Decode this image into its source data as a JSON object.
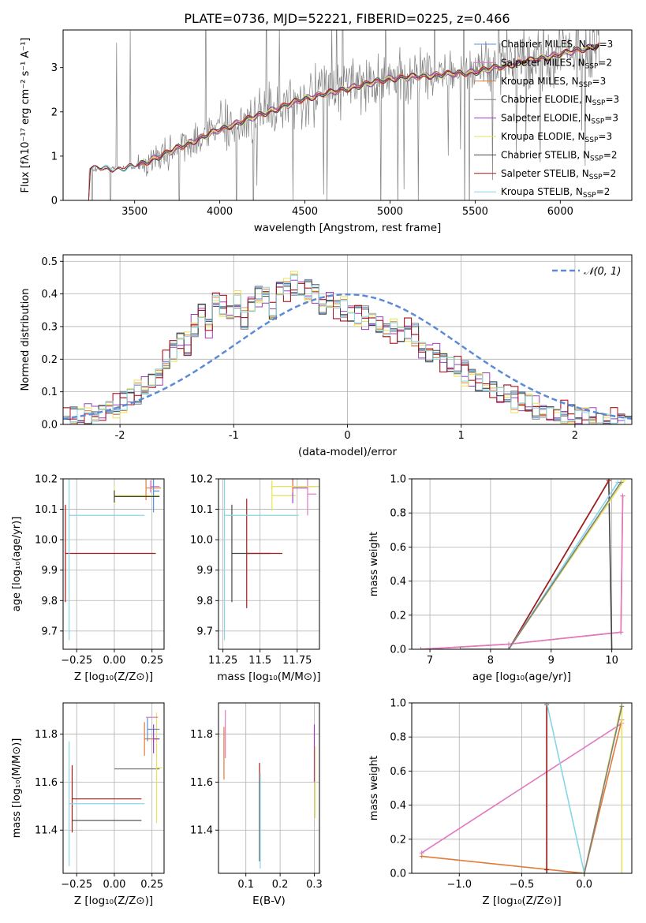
{
  "figure_title": "PLATE=0736, MJD=52221, FIBERID=0225, z=0.466",
  "colors": {
    "chabrier_miles": "#5a8fd8",
    "salpeter_miles": "#e377c2",
    "kroupa_miles": "#e07b39",
    "chabrier_elodie": "#7f7f7f",
    "salpeter_elodie": "#9b3fc0",
    "kroupa_elodie": "#e6e35a",
    "chabrier_stelib": "#444444",
    "salpeter_stelib": "#a51a1a",
    "kroupa_stelib": "#86d6e6",
    "normal": "#5b8bd6",
    "data": "#808080",
    "grid": "#b0b0b0"
  },
  "chart_data": [
    {
      "id": "spectrum",
      "type": "line",
      "title": "PLATE=0736, MJD=52221, FIBERID=0225, z=0.466",
      "xlabel": "wavelength [Angstrom, rest frame]",
      "ylabel": "Flux [fλ10⁻¹⁷ erg cm⁻² s⁻¹ A⁻¹]",
      "xlim": [
        3080,
        6420
      ],
      "ylim": [
        0,
        3.85
      ],
      "xticks": [
        3500,
        4000,
        4500,
        5000,
        5500,
        6000
      ],
      "yticks": [
        0,
        1,
        2,
        3
      ],
      "grid": false,
      "legend_position": "top-right",
      "data_envelope": {
        "x": [
          3230,
          3500,
          4000,
          4500,
          5000,
          5500,
          6000,
          6230
        ],
        "y": [
          0.7,
          0.75,
          1.6,
          2.3,
          2.75,
          2.9,
          3.3,
          3.5
        ]
      },
      "legend": [
        {
          "label": "Chabrier MILES, N",
          "sub": "SSP",
          "suffix": "=3",
          "color_key": "chabrier_miles"
        },
        {
          "label": "Salpeter MILES, N",
          "sub": "SSP",
          "suffix": "=2",
          "color_key": "salpeter_miles"
        },
        {
          "label": "Kroupa MILES, N",
          "sub": "SSP",
          "suffix": "=3",
          "color_key": "kroupa_miles"
        },
        {
          "label": "Chabrier ELODIE, N",
          "sub": "SSP",
          "suffix": "=3",
          "color_key": "chabrier_elodie"
        },
        {
          "label": "Salpeter ELODIE, N",
          "sub": "SSP",
          "suffix": "=3",
          "color_key": "salpeter_elodie"
        },
        {
          "label": "Kroupa ELODIE, N",
          "sub": "SSP",
          "suffix": "=3",
          "color_key": "kroupa_elodie"
        },
        {
          "label": "Chabrier STELIB, N",
          "sub": "SSP",
          "suffix": "=2",
          "color_key": "chabrier_stelib"
        },
        {
          "label": "Salpeter STELIB, N",
          "sub": "SSP",
          "suffix": "=2",
          "color_key": "salpeter_stelib"
        },
        {
          "label": "Kroupa STELIB, N",
          "sub": "SSP",
          "suffix": "=2",
          "color_key": "kroupa_stelib"
        }
      ]
    },
    {
      "id": "residuals",
      "type": "line",
      "xlabel": "(data-model)/error",
      "ylabel": "Normed distribution",
      "xlim": [
        -2.5,
        2.5
      ],
      "ylim": [
        0,
        0.52
      ],
      "xticks": [
        -2,
        -1,
        0,
        1,
        2
      ],
      "yticks": [
        0.0,
        0.1,
        0.2,
        0.3,
        0.4,
        0.5
      ],
      "grid": true,
      "legend_position": "top-right",
      "legend_label": "𝒩(0, 1)",
      "bin_width": 0.1,
      "bin_start": -2.5,
      "base_hist": [
        0.01,
        0.02,
        0.02,
        0.03,
        0.03,
        0.04,
        0.05,
        0.05,
        0.07,
        0.09,
        0.1,
        0.11,
        0.13,
        0.15,
        0.19,
        0.23,
        0.26,
        0.24,
        0.3,
        0.35,
        0.3,
        0.38,
        0.36,
        0.34,
        0.37,
        0.33,
        0.37,
        0.39,
        0.4,
        0.34,
        0.42,
        0.42,
        0.43,
        0.41,
        0.41,
        0.41,
        0.36,
        0.38,
        0.36,
        0.35,
        0.34,
        0.34,
        0.33,
        0.32,
        0.3,
        0.29,
        0.29,
        0.28,
        0.29,
        0.27,
        0.23,
        0.22,
        0.22,
        0.2,
        0.18,
        0.17,
        0.16,
        0.15,
        0.13,
        0.12,
        0.11,
        0.09,
        0.09,
        0.08,
        0.07,
        0.06,
        0.05,
        0.04,
        0.04,
        0.03,
        0.03,
        0.03,
        0.02,
        0.02,
        0.02,
        0.01,
        0.01,
        0.01,
        0.01,
        0.01
      ],
      "series": [
        {
          "name": "Chabrier MILES",
          "color_key": "chabrier_miles",
          "jitter": 0.01
        },
        {
          "name": "Salpeter MILES",
          "color_key": "salpeter_miles",
          "jitter": 0.02
        },
        {
          "name": "Kroupa MILES",
          "color_key": "kroupa_miles",
          "jitter": -0.01
        },
        {
          "name": "Chabrier ELODIE",
          "color_key": "chabrier_elodie",
          "jitter": 0.015
        },
        {
          "name": "Salpeter ELODIE",
          "color_key": "salpeter_elodie",
          "jitter": -0.015
        },
        {
          "name": "Kroupa ELODIE",
          "color_key": "kroupa_elodie",
          "jitter": -0.02
        },
        {
          "name": "Chabrier STELIB",
          "color_key": "chabrier_stelib",
          "jitter": 0.005
        },
        {
          "name": "Salpeter STELIB",
          "color_key": "salpeter_stelib",
          "jitter": 0.02
        },
        {
          "name": "Kroupa STELIB",
          "color_key": "kroupa_stelib",
          "jitter": -0.005
        }
      ]
    },
    {
      "id": "age_vs_Z",
      "type": "scatter",
      "xlabel": "Z [log₁₀(Z/Z⊙)]",
      "ylabel": "age  [log₁₀(age/yr)]",
      "xlim": [
        -0.34,
        0.33
      ],
      "ylim": [
        9.64,
        10.2
      ],
      "xticks": [
        -0.25,
        0.0,
        0.25
      ],
      "xticklabels": [
        "−0.25",
        "0.00",
        "0.25"
      ],
      "yticks": [
        9.7,
        9.8,
        9.9,
        10.0,
        10.1,
        10.2
      ],
      "grid": true,
      "points": [
        {
          "x": -0.025,
          "y": 9.955,
          "xerr": 0.3,
          "yerr": 0.16,
          "color_key": "salpeter_stelib"
        },
        {
          "x": -0.05,
          "y": 10.08,
          "xerr": 0.25,
          "yerr": 0.41,
          "color_key": "kroupa_stelib"
        },
        {
          "x": 0.15,
          "y": 10.145,
          "xerr": 0.15,
          "yerr": 0.03,
          "color_key": "kroupa_elodie"
        },
        {
          "x": 0.26,
          "y": 10.17,
          "xerr": 0.05,
          "yerr": 0.04,
          "color_key": "kroupa_miles"
        },
        {
          "x": 0.27,
          "y": 10.175,
          "xerr": 0.03,
          "yerr": 0.02,
          "color_key": "salpeter_miles"
        },
        {
          "x": 0.28,
          "y": 10.16,
          "xerr": 0.02,
          "yerr": 0.07,
          "color_key": "chabrier_miles"
        },
        {
          "x": 0.15,
          "y": 10.142,
          "xerr": 0.15,
          "yerr": 0.02,
          "color_key": "chabrier_stelib"
        }
      ]
    },
    {
      "id": "age_vs_mass",
      "type": "scatter",
      "xlabel": "mass [log₁₀(M/M⊙)]",
      "xlim": [
        11.22,
        11.9
      ],
      "ylim": [
        9.64,
        10.2
      ],
      "xticks": [
        11.25,
        11.5,
        11.75
      ],
      "yticks": [
        9.7,
        9.8,
        9.9,
        10.0,
        10.1,
        10.2
      ],
      "grid": true,
      "points": [
        {
          "x": 11.44,
          "y": 9.955,
          "xerr": 0.13,
          "yerr": 0.16,
          "color_key": "chabrier_stelib"
        },
        {
          "x": 11.53,
          "y": 9.955,
          "xerr": 0.12,
          "yerr": 0.18,
          "color_key": "salpeter_stelib"
        },
        {
          "x": 11.51,
          "y": 10.08,
          "xerr": 0.25,
          "yerr": 0.41,
          "color_key": "kroupa_stelib"
        },
        {
          "x": 11.66,
          "y": 10.145,
          "xerr": 0.08,
          "yerr": 0.05,
          "color_key": "kroupa_elodie"
        },
        {
          "x": 11.77,
          "y": 10.17,
          "xerr": 0.05,
          "yerr": 0.05,
          "color_key": "salpeter_elodie"
        },
        {
          "x": 11.8,
          "y": 10.175,
          "xerr": 0.08,
          "yerr": 0.02,
          "color_key": "kroupa_miles"
        },
        {
          "x": 11.85,
          "y": 10.15,
          "xerr": 0.03,
          "yerr": 0.07,
          "color_key": "salpeter_miles"
        },
        {
          "x": 11.75,
          "y": 10.175,
          "xerr": 0.17,
          "yerr": 0.01,
          "color_key": "kroupa_elodie"
        }
      ]
    },
    {
      "id": "massweight_vs_age",
      "type": "line",
      "xlabel": "age  [log₁₀(age/yr)]",
      "ylabel": "mass weight",
      "xlim": [
        6.7,
        10.33
      ],
      "ylim": [
        0,
        1.0
      ],
      "xticks": [
        7,
        8,
        9,
        10
      ],
      "yticks": [
        0.0,
        0.2,
        0.4,
        0.6,
        0.8,
        1.0
      ],
      "grid": true,
      "series": [
        {
          "color_key": "kroupa_miles",
          "x": [
            6.85,
            8.3,
            10.15,
            10.18
          ],
          "y": [
            0.0,
            0.03,
            0.1,
            0.9
          ]
        },
        {
          "color_key": "salpeter_miles",
          "x": [
            6.85,
            8.3,
            10.15,
            10.18
          ],
          "y": [
            0.0,
            0.03,
            0.1,
            0.9
          ]
        },
        {
          "color_key": "chabrier_stelib",
          "x": [
            8.3,
            9.95,
            10.0
          ],
          "y": [
            0.0,
            0.99,
            0.0
          ]
        },
        {
          "color_key": "salpeter_stelib",
          "x": [
            8.3,
            9.95
          ],
          "y": [
            0.0,
            0.99
          ]
        },
        {
          "color_key": "kroupa_stelib",
          "x": [
            8.3,
            10.1
          ],
          "y": [
            0.0,
            0.98
          ]
        },
        {
          "color_key": "kroupa_elodie",
          "x": [
            8.3,
            10.2
          ],
          "y": [
            0.0,
            0.99
          ]
        },
        {
          "color_key": "chabrier_elodie",
          "x": [
            7.5,
            8.3,
            10.15
          ],
          "y": [
            0.0,
            0.0,
            0.98
          ]
        }
      ]
    },
    {
      "id": "mass_vs_Z",
      "type": "scatter",
      "xlabel": "Z [log₁₀(Z/Z⊙)]",
      "ylabel": "mass [log₁₀(M/M⊙)]",
      "xlim": [
        -0.34,
        0.33
      ],
      "ylim": [
        11.22,
        11.93
      ],
      "xticks": [
        -0.25,
        0.0,
        0.25
      ],
      "xticklabels": [
        "−0.25",
        "0.00",
        "0.25"
      ],
      "yticks": [
        11.4,
        11.6,
        11.8
      ],
      "grid": true,
      "points": [
        {
          "x": -0.05,
          "y": 11.44,
          "xerr": 0.23,
          "yerr": 0.0,
          "color_key": "chabrier_stelib"
        },
        {
          "x": -0.05,
          "y": 11.53,
          "xerr": 0.23,
          "yerr": 0.14,
          "color_key": "salpeter_stelib"
        },
        {
          "x": -0.05,
          "y": 11.51,
          "xerr": 0.25,
          "yerr": 0.26,
          "color_key": "kroupa_stelib"
        },
        {
          "x": 0.15,
          "y": 11.655,
          "xerr": 0.15,
          "yerr": 0.0,
          "color_key": "chabrier_elodie"
        },
        {
          "x": 0.3,
          "y": 11.66,
          "xerr": 0.02,
          "yerr": 0.23,
          "color_key": "kroupa_elodie"
        },
        {
          "x": 0.25,
          "y": 11.78,
          "xerr": 0.05,
          "yerr": 0.07,
          "color_key": "kroupa_miles"
        },
        {
          "x": 0.26,
          "y": 11.82,
          "xerr": 0.04,
          "yerr": 0.05,
          "color_key": "chabrier_miles"
        },
        {
          "x": 0.25,
          "y": 11.87,
          "xerr": 0.04,
          "yerr": 0.0,
          "color_key": "salpeter_miles"
        },
        {
          "x": 0.28,
          "y": 11.78,
          "xerr": 0.02,
          "yerr": 0.06,
          "color_key": "salpeter_elodie"
        }
      ]
    },
    {
      "id": "mass_vs_ebv",
      "type": "scatter",
      "xlabel": "E(B-V)",
      "xlim": [
        0.02,
        0.315
      ],
      "ylim": [
        11.22,
        11.93
      ],
      "xticks": [
        0.1,
        0.2,
        0.3
      ],
      "yticks": [
        11.4,
        11.6,
        11.8
      ],
      "grid": true,
      "points": [
        {
          "x": 0.04,
          "y": 11.8,
          "xerr": 0.0,
          "yerr": 0.1,
          "color_key": "salpeter_miles"
        },
        {
          "x": 0.036,
          "y": 11.72,
          "xerr": 0.0,
          "yerr": 0.11,
          "color_key": "kroupa_miles"
        },
        {
          "x": 0.14,
          "y": 11.54,
          "xerr": 0.0,
          "yerr": 0.14,
          "color_key": "salpeter_stelib"
        },
        {
          "x": 0.14,
          "y": 11.44,
          "xerr": 0.0,
          "yerr": 0.17,
          "color_key": "chabrier_stelib"
        },
        {
          "x": 0.142,
          "y": 11.44,
          "xerr": 0.0,
          "yerr": 0.2,
          "color_key": "kroupa_stelib"
        },
        {
          "x": 0.3,
          "y": 11.72,
          "xerr": 0.0,
          "yerr": 0.12,
          "color_key": "salpeter_elodie"
        },
        {
          "x": 0.303,
          "y": 11.6,
          "xerr": 0.0,
          "yerr": 0.15,
          "color_key": "kroupa_elodie"
        }
      ]
    },
    {
      "id": "massweight_vs_Z",
      "type": "line",
      "xlabel": "Z [log₁₀(Z/Z⊙)]",
      "ylabel": "mass weight",
      "xlim": [
        -1.38,
        0.38
      ],
      "ylim": [
        0,
        1.0
      ],
      "xticks": [
        -1.0,
        -0.5,
        0.0
      ],
      "xticklabels": [
        "−1.0",
        "−0.5",
        "0.0"
      ],
      "yticks": [
        0.0,
        0.2,
        0.4,
        0.6,
        0.8,
        1.0
      ],
      "grid": true,
      "series": [
        {
          "color_key": "salpeter_miles",
          "x": [
            -1.3,
            0.3
          ],
          "y": [
            0.12,
            0.88
          ]
        },
        {
          "color_key": "kroupa_miles",
          "x": [
            -1.3,
            0.0,
            0.3
          ],
          "y": [
            0.1,
            0.0,
            0.9
          ]
        },
        {
          "color_key": "chabrier_stelib",
          "x": [
            -0.3,
            -0.3
          ],
          "y": [
            0.0,
            1.0
          ]
        },
        {
          "color_key": "salpeter_stelib",
          "x": [
            -0.3,
            -0.3
          ],
          "y": [
            0.02,
            0.99
          ]
        },
        {
          "color_key": "kroupa_stelib",
          "x": [
            -0.3,
            0.0
          ],
          "y": [
            1.0,
            0.0
          ]
        },
        {
          "color_key": "kroupa_elodie",
          "x": [
            0.0,
            0.3,
            0.3
          ],
          "y": [
            0.0,
            1.0,
            0.0
          ]
        },
        {
          "color_key": "chabrier_elodie",
          "x": [
            0.0,
            0.3
          ],
          "y": [
            0.0,
            0.98
          ]
        }
      ]
    }
  ]
}
